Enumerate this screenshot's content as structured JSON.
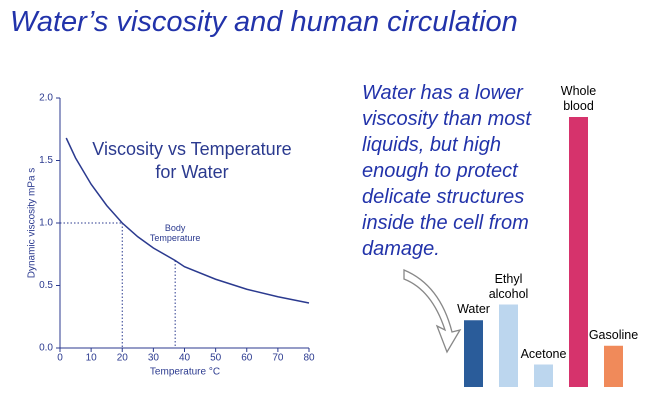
{
  "slide": {
    "title": "Water’s viscosity and human circulation"
  },
  "note": {
    "text": "Water has a lower viscosity than most liquids, but high enough to protect delicate structures inside the cell from damage."
  },
  "chart_data": [
    {
      "type": "line",
      "title": "Viscosity vs Temperature for Water",
      "x_label": "Temperature °C",
      "y_label": "Dynamic viscosity mPa s",
      "x": [
        2,
        5,
        10,
        15,
        20,
        25,
        30,
        37,
        40,
        50,
        60,
        70,
        80
      ],
      "values": [
        1.68,
        1.52,
        1.31,
        1.14,
        1.0,
        0.89,
        0.8,
        0.7,
        0.65,
        0.55,
        0.47,
        0.41,
        0.36
      ],
      "color": "#2b3a8f",
      "xlim": [
        0,
        80
      ],
      "xticks": [
        0,
        10,
        20,
        30,
        40,
        50,
        60,
        70,
        80
      ],
      "ylim": [
        0,
        2
      ],
      "yticks": [
        {
          "value": 0,
          "label": "0.0"
        },
        0.5,
        {
          "value": 1,
          "label": "1.0"
        },
        1.5,
        {
          "value": 2,
          "label": "2.0"
        }
      ],
      "guides": [
        {
          "x": 20,
          "y": 1.0
        }
      ],
      "annotations": [
        {
          "x": 37,
          "y": 0.7,
          "text": "Body Temperature"
        }
      ]
    },
    {
      "type": "bar",
      "categories": [
        "Water",
        "Ethyl alcohol",
        "Acetone",
        "Whole blood",
        "Gasoline"
      ],
      "values": [
        0.89,
        1.1,
        0.3,
        3.6,
        0.55
      ],
      "colors": [
        "#2a5c9a",
        "#bcd6ee",
        "#bcd6ee",
        "#d6336c",
        "#f08a5a"
      ]
    }
  ]
}
